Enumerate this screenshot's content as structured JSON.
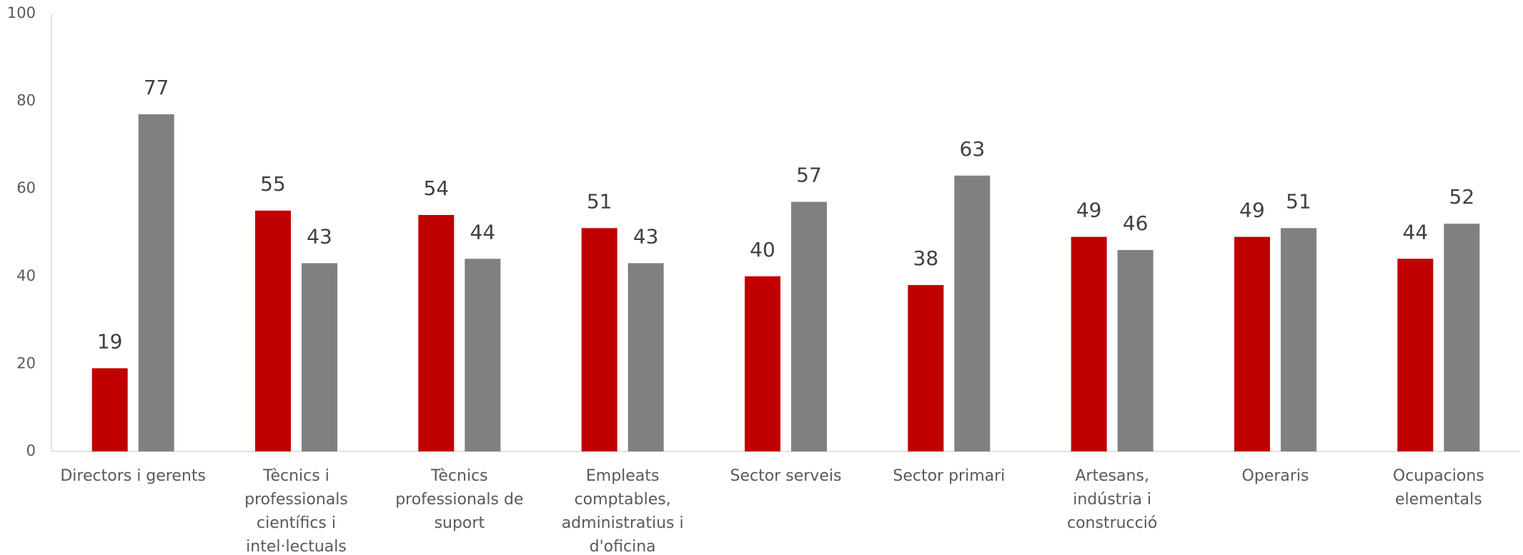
{
  "chart_data": {
    "type": "bar",
    "categories": [
      "Directors i gerents",
      "Tècnics i professionals científics i intel·lectuals",
      "Tècnics professionals de suport",
      "Empleats comptables, administratius i d'oficina",
      "Sector serveis",
      "Sector primari",
      "Artesans, indústria i construcció",
      "Operaris",
      "Ocupacions elementals"
    ],
    "series": [
      {
        "color": "#c00000",
        "values": [
          19,
          55,
          54,
          51,
          40,
          38,
          49,
          49,
          44
        ]
      },
      {
        "color": "#808080",
        "values": [
          77,
          43,
          44,
          43,
          57,
          63,
          46,
          51,
          52
        ]
      }
    ],
    "ylim": [
      0,
      100
    ],
    "yticks": [
      0,
      20,
      40,
      60,
      80,
      100
    ]
  }
}
